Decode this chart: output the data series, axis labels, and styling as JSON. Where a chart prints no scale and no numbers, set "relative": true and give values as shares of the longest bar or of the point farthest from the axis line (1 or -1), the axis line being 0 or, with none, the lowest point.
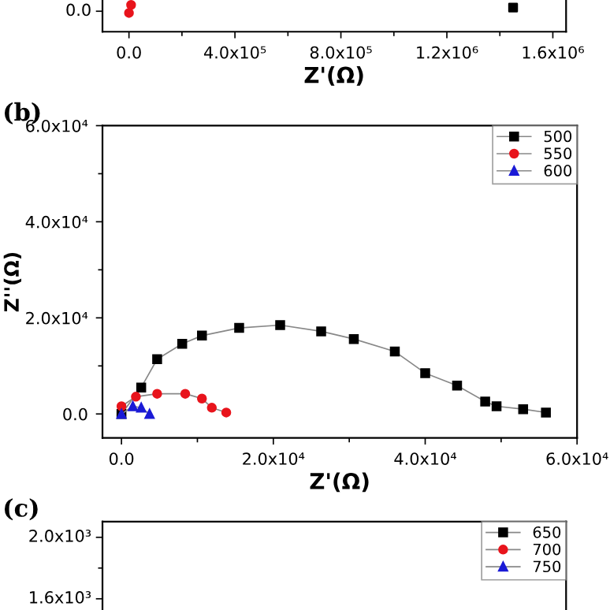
{
  "chart_data": [
    {
      "type": "scatter",
      "relative": true,
      "xlabel": "Z'(Ω)",
      "xlim": [
        -100000,
        1650000
      ],
      "annotations": [
        "0.0"
      ],
      "xticks": [
        {
          "value": 0,
          "label": "0.0"
        },
        {
          "value": 400000,
          "label": "4.0x10⁵"
        },
        {
          "value": 800000,
          "label": "8.0x10⁵"
        },
        {
          "value": 1200000,
          "label": "1.2x10⁶"
        },
        {
          "value": 1600000,
          "label": "1.6x10⁶"
        }
      ],
      "grid": false,
      "legend": false,
      "series": [
        {
          "color": "#e8141c",
          "marker": "circle",
          "x": [
            0,
            8000
          ],
          "values": [
            0.7,
            1
          ]
        },
        {
          "color": "#000000",
          "marker": "square",
          "x": [
            1450000
          ],
          "values": [
            0.9
          ]
        }
      ]
    },
    {
      "type": "line",
      "xlabel": "Z'(Ω)",
      "ylabel": "Z''(Ω)",
      "xlim": [
        -2500,
        60000
      ],
      "ylim": [
        -5000,
        60000
      ],
      "xticks": [
        {
          "value": 0,
          "label": "0.0"
        },
        {
          "value": 20000,
          "label": "2.0x10⁴"
        },
        {
          "value": 40000,
          "label": "4.0x10⁴"
        },
        {
          "value": 60000,
          "label": "6.0x10⁴"
        }
      ],
      "yticks": [
        {
          "value": 0,
          "label": "0.0"
        },
        {
          "value": 20000,
          "label": "2.0x10⁴"
        },
        {
          "value": 40000,
          "label": "4.0x10⁴"
        },
        {
          "value": 60000,
          "label": "6.0x10⁴"
        }
      ],
      "grid": false,
      "legend": "top right",
      "annotations": [
        "(b)"
      ],
      "series": [
        {
          "name": "500",
          "color": "#000000",
          "marker": "square",
          "x": [
            0,
            2600,
            4700,
            8000,
            10600,
            15500,
            20900,
            26300,
            30600,
            36000,
            40000,
            44200,
            47900,
            49400,
            52900,
            55900
          ],
          "values": [
            0,
            5500,
            11400,
            14600,
            16300,
            17900,
            18500,
            17200,
            15600,
            13000,
            8500,
            5900,
            2600,
            1600,
            1000,
            300
          ]
        },
        {
          "name": "550",
          "color": "#e8141c",
          "marker": "circle",
          "x": [
            0,
            1900,
            4700,
            8400,
            10600,
            11900,
            13800
          ],
          "values": [
            1600,
            3600,
            4200,
            4200,
            3200,
            1300,
            300
          ]
        },
        {
          "name": "600",
          "color": "#1a1ad6",
          "marker": "triangle",
          "x": [
            0,
            1500,
            2600,
            3700
          ],
          "values": [
            0,
            1600,
            1300,
            0
          ]
        }
      ]
    },
    {
      "type": "other",
      "legend": "top right",
      "annotations": [
        "(c)",
        "2.0x10³",
        "1.6x10³"
      ],
      "series": [
        {
          "name": "650",
          "color": "#000000",
          "marker": "square"
        },
        {
          "name": "700",
          "color": "#e8141c",
          "marker": "circle"
        },
        {
          "name": "750",
          "color": "#1a1ad6",
          "marker": "triangle"
        }
      ]
    }
  ]
}
